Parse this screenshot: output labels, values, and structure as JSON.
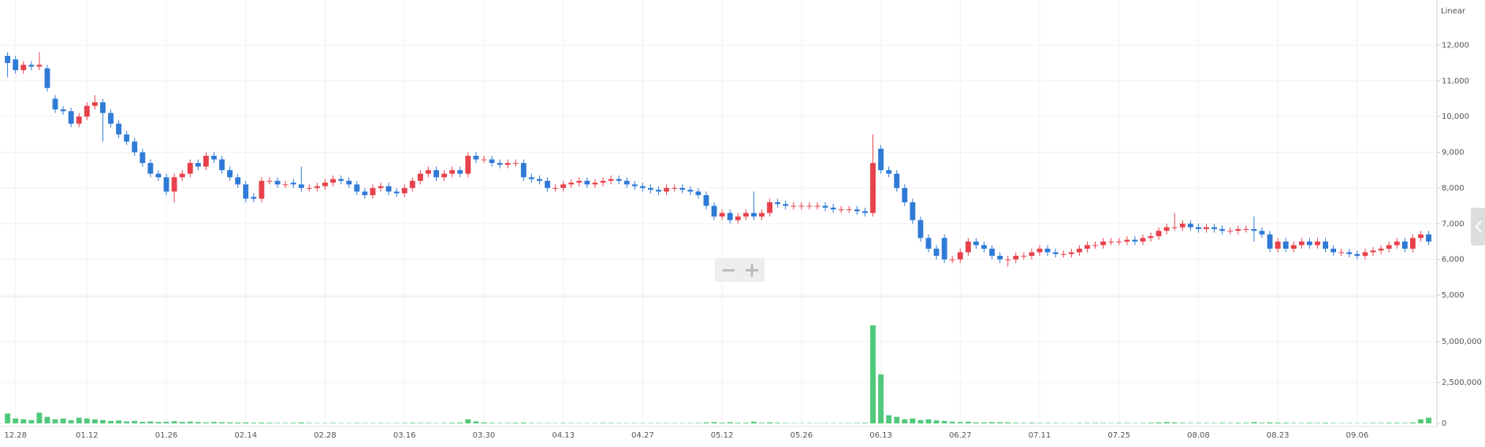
{
  "chart_data": {
    "type": "candlestick",
    "scale_label": "Linear",
    "up_color": "#e8414b",
    "down_color": "#2f7ad6",
    "volume_color": "#4fc97a",
    "categories": [
      null,
      "12.28",
      null,
      null,
      null,
      null,
      null,
      null,
      null,
      null,
      "01.12",
      null,
      null,
      null,
      null,
      null,
      null,
      null,
      null,
      null,
      "01.26",
      null,
      null,
      null,
      null,
      null,
      null,
      null,
      null,
      null,
      "02.14",
      null,
      null,
      null,
      null,
      null,
      null,
      null,
      null,
      null,
      "02.28",
      null,
      null,
      null,
      null,
      null,
      null,
      null,
      null,
      null,
      "03.16",
      null,
      null,
      null,
      null,
      null,
      null,
      null,
      null,
      null,
      "03.30",
      null,
      null,
      null,
      null,
      null,
      null,
      null,
      null,
      null,
      "04.13",
      null,
      null,
      null,
      null,
      null,
      null,
      null,
      null,
      null,
      "04.27",
      null,
      null,
      null,
      null,
      null,
      null,
      null,
      null,
      null,
      "05.12",
      null,
      null,
      null,
      null,
      null,
      null,
      null,
      null,
      null,
      "05.26",
      null,
      null,
      null,
      null,
      null,
      null,
      null,
      null,
      null,
      "06.13",
      null,
      null,
      null,
      null,
      null,
      null,
      null,
      null,
      null,
      "06.27",
      null,
      null,
      null,
      null,
      null,
      null,
      null,
      null,
      null,
      "07.11",
      null,
      null,
      null,
      null,
      null,
      null,
      null,
      null,
      null,
      "07.25",
      null,
      null,
      null,
      null,
      null,
      null,
      null,
      null,
      null,
      "08.08",
      null,
      null,
      null,
      null,
      null,
      null,
      null,
      null,
      null,
      "08.23",
      null,
      null,
      null,
      null,
      null,
      null,
      null,
      null,
      null,
      "09.06",
      null,
      null,
      null,
      null,
      null,
      null,
      null,
      null,
      null
    ],
    "open": [
      11700,
      11600,
      11300,
      11450,
      11400,
      11350,
      10500,
      10200,
      10150,
      9800,
      10000,
      10300,
      10400,
      10100,
      9800,
      9500,
      9300,
      9000,
      8700,
      8400,
      8300,
      7900,
      8300,
      8400,
      8700,
      8600,
      8900,
      8800,
      8500,
      8300,
      8100,
      7750,
      7700,
      8200,
      8200,
      8100,
      8150,
      8100,
      8000,
      8000,
      8050,
      8150,
      8250,
      8200,
      8100,
      7900,
      7800,
      8000,
      8050,
      7900,
      7850,
      8000,
      8200,
      8400,
      8500,
      8300,
      8400,
      8500,
      8400,
      8900,
      8800,
      8800,
      8700,
      8650,
      8700,
      8700,
      8300,
      8250,
      8200,
      8000,
      8000,
      8100,
      8150,
      8200,
      8100,
      8150,
      8200,
      8250,
      8200,
      8100,
      8050,
      8000,
      7950,
      7900,
      8000,
      8000,
      7950,
      7900,
      7800,
      7500,
      7200,
      7300,
      7100,
      7200,
      7300,
      7200,
      7300,
      7600,
      7550,
      7500,
      7500,
      7500,
      7500,
      7500,
      7450,
      7400,
      7400,
      7400,
      7350,
      7300,
      9100,
      8500,
      8400,
      8000,
      7600,
      7100,
      6600,
      6300,
      6600,
      6000,
      6000,
      6200,
      6500,
      6400,
      6300,
      6100,
      6000,
      6000,
      6100,
      6100,
      6200,
      6300,
      6200,
      6150,
      6150,
      6200,
      6300,
      6400,
      6400,
      6500,
      6500,
      6500,
      6550,
      6500,
      6600,
      6650,
      6800,
      6900,
      6900,
      7000,
      6900,
      6850,
      6900,
      6850,
      6800,
      6800,
      6850,
      6850,
      6800,
      6700,
      6300,
      6500,
      6300,
      6400,
      6500,
      6400,
      6500,
      6300,
      6200,
      6200,
      6150,
      6100,
      6200,
      6250,
      6300,
      6400,
      6500,
      6300,
      6600,
      6700
    ],
    "high": [
      11800,
      11700,
      11550,
      11550,
      11800,
      11450,
      10600,
      10300,
      10250,
      10100,
      10400,
      10600,
      10500,
      10200,
      9900,
      9600,
      9400,
      9100,
      8800,
      8500,
      8400,
      8400,
      8500,
      8800,
      8800,
      9000,
      9000,
      8900,
      8600,
      8400,
      8200,
      7850,
      8300,
      8300,
      8300,
      8200,
      8250,
      8600,
      8100,
      8150,
      8250,
      8350,
      8350,
      8300,
      8200,
      8000,
      8100,
      8150,
      8150,
      8000,
      8100,
      8300,
      8500,
      8600,
      8600,
      8500,
      8600,
      8600,
      9000,
      9000,
      8900,
      8900,
      8800,
      8800,
      8800,
      8800,
      8400,
      8350,
      8300,
      8100,
      8200,
      8250,
      8300,
      8300,
      8250,
      8300,
      8350,
      8350,
      8300,
      8200,
      8150,
      8100,
      8050,
      8100,
      8100,
      8100,
      8050,
      8000,
      7900,
      7600,
      7400,
      7400,
      7300,
      7400,
      7900,
      7400,
      7700,
      7700,
      7650,
      7600,
      7600,
      7600,
      7600,
      7600,
      7550,
      7500,
      7500,
      7500,
      7450,
      9500,
      9200,
      8600,
      8500,
      8100,
      7700,
      7200,
      6700,
      6400,
      6700,
      6100,
      6300,
      6600,
      6600,
      6500,
      6400,
      6200,
      6100,
      6200,
      6200,
      6300,
      6400,
      6400,
      6300,
      6250,
      6300,
      6400,
      6500,
      6500,
      6600,
      6600,
      6600,
      6650,
      6650,
      6700,
      6750,
      6900,
      7000,
      7300,
      7100,
      7100,
      7000,
      7000,
      7000,
      6950,
      6900,
      6950,
      6950,
      7200,
      6900,
      6800,
      6600,
      6600,
      6500,
      6600,
      6600,
      6600,
      6600,
      6400,
      6300,
      6300,
      6250,
      6300,
      6350,
      6400,
      6500,
      6600,
      6600,
      6700,
      6800,
      6800
    ],
    "low": [
      11100,
      11200,
      11200,
      11300,
      11300,
      10700,
      10100,
      10050,
      9700,
      9700,
      9900,
      10200,
      9300,
      9700,
      9400,
      9200,
      8900,
      8600,
      8300,
      8200,
      7800,
      7600,
      8200,
      8300,
      8500,
      8500,
      8700,
      8400,
      8200,
      8000,
      7600,
      7600,
      7600,
      8100,
      8000,
      8000,
      8000,
      7900,
      7900,
      7900,
      7950,
      8050,
      8100,
      8000,
      7800,
      7700,
      7700,
      7900,
      7800,
      7750,
      7750,
      7900,
      8100,
      8300,
      8200,
      8200,
      8300,
      8300,
      8300,
      8700,
      8700,
      8600,
      8550,
      8550,
      8600,
      8200,
      8150,
      8100,
      7900,
      7900,
      7900,
      8000,
      8050,
      8000,
      8000,
      8050,
      8100,
      8100,
      8000,
      7950,
      7900,
      7850,
      7800,
      7800,
      7900,
      7850,
      7800,
      7700,
      7400,
      7100,
      7100,
      7000,
      7000,
      7100,
      7100,
      7100,
      7200,
      7450,
      7400,
      7400,
      7400,
      7400,
      7400,
      7350,
      7300,
      7300,
      7300,
      7250,
      7200,
      7200,
      8400,
      8300,
      7900,
      7500,
      7000,
      6500,
      6200,
      6000,
      5900,
      5900,
      5900,
      6100,
      6300,
      6200,
      6000,
      5900,
      5800,
      5900,
      6000,
      6000,
      6100,
      6100,
      6050,
      6050,
      6050,
      6100,
      6200,
      6300,
      6300,
      6400,
      6400,
      6400,
      6400,
      6400,
      6500,
      6550,
      6700,
      6800,
      6800,
      6800,
      6750,
      6750,
      6750,
      6700,
      6700,
      6700,
      6750,
      6500,
      6600,
      6200,
      6200,
      6200,
      6200,
      6300,
      6300,
      6300,
      6200,
      6100,
      6100,
      6050,
      6000,
      6000,
      6100,
      6150,
      6200,
      6300,
      6200,
      6200,
      6500,
      6400
    ],
    "close": [
      11500,
      11300,
      11450,
      11400,
      11450,
      10800,
      10200,
      10150,
      9800,
      10000,
      10300,
      10400,
      10100,
      9800,
      9500,
      9300,
      9000,
      8700,
      8400,
      8300,
      7900,
      8300,
      8400,
      8700,
      8600,
      8900,
      8800,
      8500,
      8300,
      8100,
      7700,
      7700,
      8200,
      8200,
      8100,
      8100,
      8100,
      8000,
      8000,
      8050,
      8150,
      8250,
      8200,
      8100,
      7900,
      7800,
      8000,
      8050,
      7900,
      7850,
      8000,
      8200,
      8400,
      8500,
      8300,
      8400,
      8500,
      8400,
      8900,
      8800,
      8800,
      8700,
      8650,
      8700,
      8700,
      8300,
      8250,
      8200,
      8000,
      8000,
      8100,
      8150,
      8200,
      8100,
      8150,
      8200,
      8250,
      8200,
      8100,
      8050,
      8000,
      7950,
      7900,
      8000,
      8000,
      7950,
      7900,
      7800,
      7500,
      7200,
      7300,
      7100,
      7200,
      7300,
      7200,
      7300,
      7600,
      7550,
      7500,
      7500,
      7500,
      7500,
      7500,
      7450,
      7400,
      7400,
      7400,
      7350,
      7300,
      8700,
      8500,
      8400,
      8000,
      7600,
      7100,
      6600,
      6300,
      6100,
      6000,
      6000,
      6200,
      6500,
      6400,
      6300,
      6100,
      6000,
      6000,
      6100,
      6100,
      6200,
      6300,
      6200,
      6150,
      6150,
      6200,
      6300,
      6400,
      6400,
      6500,
      6500,
      6500,
      6550,
      6500,
      6600,
      6650,
      6800,
      6900,
      6900,
      7000,
      6900,
      6850,
      6900,
      6850,
      6800,
      6800,
      6850,
      6850,
      6800,
      6700,
      6300,
      6500,
      6300,
      6400,
      6500,
      6400,
      6500,
      6300,
      6200,
      6200,
      6150,
      6100,
      6200,
      6250,
      6300,
      6400,
      6500,
      6300,
      6600,
      6700,
      6500
    ],
    "volume": [
      600000,
      300000,
      250000,
      200000,
      650000,
      400000,
      250000,
      300000,
      200000,
      350000,
      300000,
      250000,
      200000,
      150000,
      180000,
      120000,
      150000,
      100000,
      120000,
      90000,
      100000,
      130000,
      90000,
      110000,
      80000,
      60000,
      90000,
      70000,
      60000,
      50000,
      60000,
      40000,
      50000,
      40000,
      30000,
      30000,
      40000,
      60000,
      30000,
      20000,
      20000,
      30000,
      20000,
      20000,
      30000,
      20000,
      20000,
      30000,
      20000,
      20000,
      30000,
      40000,
      30000,
      30000,
      20000,
      30000,
      40000,
      50000,
      250000,
      120000,
      60000,
      40000,
      30000,
      30000,
      40000,
      50000,
      30000,
      20000,
      20000,
      20000,
      30000,
      20000,
      20000,
      20000,
      20000,
      30000,
      30000,
      20000,
      20000,
      20000,
      20000,
      20000,
      20000,
      20000,
      20000,
      20000,
      20000,
      30000,
      60000,
      80000,
      40000,
      70000,
      40000,
      40000,
      100000,
      40000,
      60000,
      40000,
      30000,
      20000,
      20000,
      20000,
      20000,
      20000,
      20000,
      20000,
      20000,
      30000,
      40000,
      6000000,
      3000000,
      500000,
      400000,
      250000,
      300000,
      200000,
      250000,
      180000,
      150000,
      100000,
      80000,
      100000,
      60000,
      60000,
      80000,
      70000,
      60000,
      40000,
      30000,
      40000,
      30000,
      30000,
      30000,
      20000,
      20000,
      30000,
      30000,
      30000,
      30000,
      20000,
      30000,
      30000,
      20000,
      30000,
      40000,
      60000,
      80000,
      60000,
      40000,
      30000,
      30000,
      30000,
      30000,
      40000,
      30000,
      40000,
      40000,
      80000,
      40000,
      60000,
      50000,
      40000,
      30000,
      30000,
      40000,
      30000,
      40000,
      30000,
      20000,
      20000,
      20000,
      20000,
      30000,
      30000,
      40000,
      40000,
      30000,
      60000,
      250000,
      350000
    ],
    "ylim": [
      5000,
      13000
    ],
    "yticks": [
      {
        "value": 5000,
        "label": "5,000"
      },
      {
        "value": 6000,
        "label": "6,000"
      },
      {
        "value": 7000,
        "label": "7,000"
      },
      {
        "value": 8000,
        "label": "8,000"
      },
      {
        "value": 9000,
        "label": "9,000"
      },
      {
        "value": 10000,
        "label": "10,000"
      },
      {
        "value": 11000,
        "label": "11,000"
      },
      {
        "value": 12000,
        "label": "12,000"
      }
    ],
    "volume_ylim": [
      0,
      7600000
    ],
    "volume_yticks": [
      0,
      {
        "value": 2500000,
        "label": "2,500,000"
      },
      {
        "value": 5000000,
        "label": "5,000,000"
      }
    ]
  }
}
